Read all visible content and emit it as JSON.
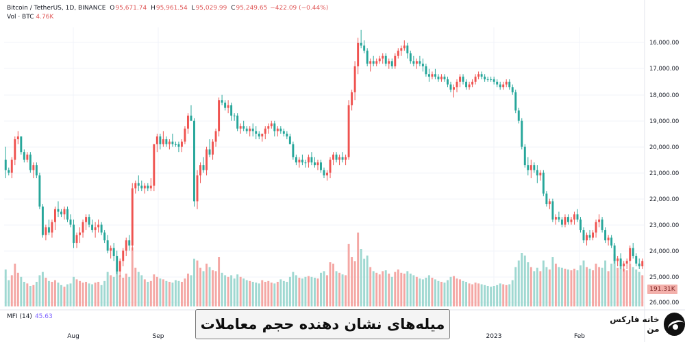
{
  "header": {
    "symbol": "Bitcoin / TetherUS, 1D, BINANCE",
    "open_label": "O",
    "open": "95,671.74",
    "high_label": "H",
    "high": "95,961.54",
    "low_label": "L",
    "low": "95,029.99",
    "close_label": "C",
    "close": "95,249.65",
    "change": "−422.09 (−0.44%)",
    "vol_label": "Vol · BTC",
    "vol_value": "4.76K"
  },
  "indicator": {
    "label": "MFI (14)",
    "value": "45.63"
  },
  "volume_badge": "191.31K",
  "banner_text": "میله‌های نشان دهنده حجم معاملات",
  "brand_text": "خانه فارکس من",
  "colors": {
    "up": "#26a69a",
    "down": "#ef5350",
    "vol_up": "#9fd8d1",
    "vol_down": "#f4a7a4",
    "grid": "#f0f3fa"
  },
  "chart_data": {
    "type": "candlestick",
    "price_axis": {
      "inverted": true,
      "ticks": [
        "16,000.00",
        "17,000.00",
        "18,000.00",
        "19,000.00",
        "20,000.00",
        "21,000.00",
        "22,000.00",
        "23,000.00",
        "24,000.00",
        "25,000.00",
        "26,000.00"
      ],
      "range": [
        15500,
        26300
      ]
    },
    "x_axis": {
      "ticks": [
        "Aug",
        "Sep",
        "2023",
        "Feb"
      ]
    },
    "volume_max": 900,
    "candles": [
      [
        20600,
        21300,
        20100,
        21000,
        450
      ],
      [
        21000,
        21200,
        20900,
        21100,
        320
      ],
      [
        21100,
        21300,
        20500,
        20600,
        380
      ],
      [
        20600,
        20800,
        19700,
        19800,
        520
      ],
      [
        19800,
        20000,
        19500,
        19700,
        410
      ],
      [
        19700,
        20400,
        19700,
        20300,
        360
      ],
      [
        20300,
        20700,
        20200,
        20600,
        300
      ],
      [
        20600,
        20700,
        20300,
        20400,
        280
      ],
      [
        20400,
        21100,
        20300,
        21000,
        250
      ],
      [
        21000,
        21300,
        20700,
        20800,
        260
      ],
      [
        20800,
        21300,
        20700,
        21200,
        300
      ],
      [
        21200,
        22500,
        21100,
        22400,
        380
      ],
      [
        22400,
        23600,
        22300,
        23500,
        420
      ],
      [
        23500,
        23700,
        23100,
        23200,
        350
      ],
      [
        23200,
        23500,
        22900,
        23400,
        310
      ],
      [
        23400,
        23600,
        22900,
        23000,
        300
      ],
      [
        23000,
        23300,
        22400,
        22500,
        320
      ],
      [
        22500,
        22800,
        22200,
        22600,
        290
      ],
      [
        22600,
        22800,
        22500,
        22700,
        260
      ],
      [
        22700,
        22900,
        22400,
        22500,
        240
      ],
      [
        22500,
        23000,
        22400,
        22900,
        270
      ],
      [
        22900,
        23200,
        22700,
        23100,
        280
      ],
      [
        23100,
        24000,
        22900,
        23800,
        360
      ],
      [
        23800,
        24000,
        23400,
        23500,
        330
      ],
      [
        23500,
        23800,
        23200,
        23400,
        310
      ],
      [
        23400,
        23600,
        22900,
        23000,
        290
      ],
      [
        23000,
        23300,
        22700,
        22800,
        300
      ],
      [
        22800,
        23200,
        22700,
        23100,
        280
      ],
      [
        23100,
        23400,
        22900,
        23300,
        270
      ],
      [
        23300,
        23600,
        23000,
        23200,
        290
      ],
      [
        23200,
        23400,
        22900,
        23100,
        300
      ],
      [
        23100,
        23500,
        23000,
        23400,
        260
      ],
      [
        23400,
        23800,
        23300,
        23700,
        310
      ],
      [
        23700,
        24200,
        23500,
        24100,
        420
      ],
      [
        24100,
        24400,
        23900,
        24000,
        380
      ],
      [
        24000,
        24500,
        23800,
        24300,
        360
      ],
      [
        24300,
        25000,
        24100,
        24900,
        430
      ],
      [
        24900,
        25100,
        24400,
        24500,
        380
      ],
      [
        24500,
        24700,
        24000,
        24100,
        350
      ],
      [
        24100,
        24300,
        23600,
        23700,
        400
      ],
      [
        23700,
        24100,
        23500,
        23900,
        360
      ],
      [
        23900,
        24100,
        21500,
        21700,
        720
      ],
      [
        21700,
        21900,
        21400,
        21500,
        470
      ],
      [
        21500,
        21800,
        21200,
        21600,
        420
      ],
      [
        21600,
        21800,
        21400,
        21700,
        380
      ],
      [
        21700,
        21900,
        21500,
        21600,
        330
      ],
      [
        21600,
        21800,
        21500,
        21700,
        300
      ],
      [
        21700,
        21800,
        21300,
        21600,
        310
      ],
      [
        21600,
        21800,
        20000,
        20000,
        390
      ],
      [
        20000,
        20300,
        19600,
        19700,
        360
      ],
      [
        19700,
        20200,
        19600,
        20000,
        340
      ],
      [
        20000,
        20100,
        19500,
        19800,
        330
      ],
      [
        19800,
        20100,
        19700,
        20000,
        310
      ],
      [
        20000,
        20200,
        19800,
        19900,
        300
      ],
      [
        19900,
        20100,
        19600,
        20000,
        290
      ],
      [
        20000,
        20100,
        19900,
        20000,
        320
      ],
      [
        20000,
        20300,
        19900,
        20100,
        310
      ],
      [
        20100,
        20300,
        19800,
        19900,
        300
      ],
      [
        19900,
        20000,
        19300,
        19400,
        340
      ],
      [
        19400,
        19600,
        18800,
        18900,
        400
      ],
      [
        18900,
        19100,
        18500,
        19100,
        380
      ],
      [
        19100,
        22400,
        19000,
        22200,
        580
      ],
      [
        22200,
        22500,
        21000,
        21200,
        560
      ],
      [
        21200,
        21500,
        20700,
        20800,
        470
      ],
      [
        20800,
        21100,
        20500,
        21000,
        430
      ],
      [
        21000,
        21200,
        20100,
        20200,
        520
      ],
      [
        20200,
        20500,
        19800,
        20400,
        480
      ],
      [
        20400,
        20600,
        19800,
        19900,
        440
      ],
      [
        19900,
        20100,
        19400,
        19500,
        430
      ],
      [
        19500,
        19700,
        18200,
        18300,
        600
      ],
      [
        18300,
        18500,
        18100,
        18400,
        410
      ],
      [
        18400,
        18700,
        18300,
        18600,
        380
      ],
      [
        18600,
        18800,
        18300,
        18500,
        360
      ],
      [
        18500,
        19100,
        18400,
        18900,
        380
      ],
      [
        18900,
        19100,
        18800,
        18900,
        340
      ],
      [
        18900,
        19500,
        18800,
        19400,
        390
      ],
      [
        19400,
        19600,
        19200,
        19300,
        360
      ],
      [
        19300,
        19500,
        19100,
        19400,
        340
      ],
      [
        19400,
        19600,
        19300,
        19500,
        320
      ],
      [
        19500,
        19700,
        19300,
        19400,
        310
      ],
      [
        19400,
        19700,
        19200,
        19500,
        300
      ],
      [
        19500,
        19800,
        19300,
        19600,
        290
      ],
      [
        19600,
        19800,
        19500,
        19700,
        280
      ],
      [
        19700,
        19900,
        19600,
        19600,
        320
      ],
      [
        19600,
        19800,
        19300,
        19400,
        300
      ],
      [
        19400,
        19600,
        19200,
        19300,
        310
      ],
      [
        19300,
        19400,
        19100,
        19200,
        290
      ],
      [
        19200,
        19700,
        19100,
        19500,
        280
      ],
      [
        19500,
        19700,
        19300,
        19400,
        300
      ],
      [
        19400,
        19600,
        19300,
        19500,
        330
      ],
      [
        19500,
        19700,
        19400,
        19600,
        310
      ],
      [
        19600,
        19800,
        19500,
        19700,
        300
      ],
      [
        19700,
        20000,
        19600,
        20000,
        360
      ],
      [
        20000,
        20600,
        19900,
        20500,
        420
      ],
      [
        20500,
        20800,
        20400,
        20700,
        380
      ],
      [
        20700,
        20900,
        20500,
        20600,
        350
      ],
      [
        20600,
        20800,
        20400,
        20700,
        340
      ],
      [
        20700,
        20900,
        20600,
        20700,
        360
      ],
      [
        20700,
        20900,
        20400,
        20500,
        370
      ],
      [
        20500,
        20800,
        20300,
        20700,
        360
      ],
      [
        20700,
        20900,
        20500,
        20800,
        350
      ],
      [
        20800,
        21000,
        20600,
        20700,
        340
      ],
      [
        20700,
        21100,
        20600,
        21000,
        410
      ],
      [
        21000,
        21300,
        20900,
        21200,
        430
      ],
      [
        21200,
        21400,
        21000,
        21100,
        380
      ],
      [
        21100,
        21300,
        20500,
        20600,
        540
      ],
      [
        20600,
        20800,
        20300,
        20400,
        520
      ],
      [
        20400,
        20700,
        20300,
        20600,
        430
      ],
      [
        20600,
        20800,
        20400,
        20500,
        410
      ],
      [
        20500,
        20700,
        20300,
        20600,
        390
      ],
      [
        20600,
        20800,
        20400,
        20500,
        380
      ],
      [
        20500,
        20600,
        18300,
        18500,
        760
      ],
      [
        18500,
        18700,
        17900,
        18000,
        600
      ],
      [
        18000,
        18300,
        16800,
        17000,
        550
      ],
      [
        17000,
        17300,
        15900,
        16100,
        900
      ],
      [
        16100,
        16300,
        15600,
        16200,
        700
      ],
      [
        16200,
        16500,
        16000,
        16400,
        580
      ],
      [
        16400,
        17000,
        16300,
        16900,
        620
      ],
      [
        16900,
        17200,
        16700,
        16800,
        480
      ],
      [
        16800,
        17000,
        16600,
        16900,
        430
      ],
      [
        16900,
        17000,
        16700,
        16800,
        410
      ],
      [
        16800,
        16900,
        16600,
        16700,
        390
      ],
      [
        16700,
        16900,
        16500,
        16600,
        430
      ],
      [
        16600,
        17000,
        16500,
        16900,
        440
      ],
      [
        16900,
        17100,
        16700,
        16800,
        400
      ],
      [
        16800,
        17100,
        16700,
        17000,
        360
      ],
      [
        17000,
        17100,
        16500,
        16600,
        420
      ],
      [
        16600,
        16700,
        16300,
        16400,
        450
      ],
      [
        16400,
        16600,
        16200,
        16300,
        410
      ],
      [
        16300,
        16400,
        16000,
        16200,
        400
      ],
      [
        16200,
        16700,
        16100,
        16500,
        430
      ],
      [
        16500,
        16900,
        16400,
        16800,
        400
      ],
      [
        16800,
        17000,
        16600,
        16900,
        380
      ],
      [
        16900,
        17100,
        16700,
        16800,
        360
      ],
      [
        16800,
        17000,
        16600,
        16900,
        340
      ],
      [
        16900,
        17200,
        16700,
        17000,
        330
      ],
      [
        17000,
        17400,
        16900,
        17300,
        350
      ],
      [
        17300,
        17600,
        17100,
        17400,
        380
      ],
      [
        17400,
        17500,
        17200,
        17300,
        350
      ],
      [
        17300,
        17500,
        17100,
        17400,
        330
      ],
      [
        17400,
        17600,
        17300,
        17500,
        310
      ],
      [
        17500,
        17600,
        17300,
        17400,
        300
      ],
      [
        17400,
        17600,
        17300,
        17500,
        290
      ],
      [
        17500,
        17800,
        17400,
        17700,
        320
      ],
      [
        17700,
        18000,
        17600,
        17900,
        360
      ],
      [
        17900,
        18200,
        17700,
        17800,
        370
      ],
      [
        17800,
        18000,
        17500,
        17600,
        340
      ],
      [
        17600,
        17800,
        17300,
        17400,
        330
      ],
      [
        17400,
        17700,
        17300,
        17600,
        310
      ],
      [
        17600,
        17900,
        17500,
        17800,
        300
      ],
      [
        17800,
        17900,
        17600,
        17700,
        280
      ],
      [
        17700,
        17800,
        17500,
        17600,
        270
      ],
      [
        17600,
        17700,
        17300,
        17400,
        290
      ],
      [
        17400,
        17500,
        17200,
        17300,
        280
      ],
      [
        17300,
        17500,
        17200,
        17400,
        270
      ],
      [
        17400,
        17600,
        17300,
        17500,
        260
      ],
      [
        17500,
        17600,
        17400,
        17500,
        250
      ],
      [
        17500,
        17600,
        17400,
        17500,
        240
      ],
      [
        17500,
        17700,
        17400,
        17600,
        250
      ],
      [
        17600,
        17800,
        17500,
        17700,
        260
      ],
      [
        17700,
        17900,
        17600,
        17800,
        280
      ],
      [
        17800,
        17900,
        17600,
        17700,
        270
      ],
      [
        17700,
        17800,
        17500,
        17600,
        260
      ],
      [
        17600,
        17900,
        17500,
        17800,
        270
      ],
      [
        17800,
        18100,
        17700,
        18000,
        320
      ],
      [
        18000,
        18800,
        17900,
        18700,
        480
      ],
      [
        18700,
        19200,
        18600,
        19100,
        560
      ],
      [
        19100,
        20200,
        19000,
        20100,
        650
      ],
      [
        20100,
        20900,
        20000,
        20800,
        620
      ],
      [
        20800,
        21200,
        20500,
        21000,
        540
      ],
      [
        21000,
        21300,
        20600,
        20800,
        480
      ],
      [
        20800,
        21100,
        20700,
        21000,
        430
      ],
      [
        21000,
        21500,
        20800,
        21200,
        470
      ],
      [
        21200,
        21400,
        21000,
        21100,
        430
      ],
      [
        21100,
        22000,
        21000,
        21900,
        560
      ],
      [
        21900,
        22400,
        21800,
        22300,
        480
      ],
      [
        22300,
        22500,
        22100,
        22200,
        450
      ],
      [
        22200,
        23000,
        22100,
        22900,
        600
      ],
      [
        22900,
        23100,
        22700,
        22800,
        520
      ],
      [
        22800,
        23000,
        22600,
        22900,
        480
      ],
      [
        22900,
        23200,
        22800,
        23100,
        470
      ],
      [
        23100,
        23200,
        22700,
        22800,
        460
      ],
      [
        22800,
        23100,
        22700,
        23000,
        450
      ],
      [
        23000,
        23100,
        22800,
        22900,
        440
      ],
      [
        22900,
        23100,
        22600,
        22700,
        460
      ],
      [
        22700,
        23000,
        22500,
        22900,
        440
      ],
      [
        22900,
        23400,
        22800,
        23300,
        500
      ],
      [
        23300,
        23800,
        23200,
        23700,
        560
      ],
      [
        23700,
        23900,
        23400,
        23500,
        480
      ],
      [
        23500,
        23700,
        23300,
        23600,
        460
      ],
      [
        23600,
        23700,
        23300,
        23400,
        440
      ],
      [
        23400,
        23600,
        22900,
        23000,
        520
      ],
      [
        23000,
        23200,
        22700,
        22900,
        480
      ],
      [
        22900,
        23400,
        22800,
        23300,
        470
      ],
      [
        23300,
        23800,
        23200,
        23700,
        560
      ],
      [
        23700,
        23900,
        23500,
        23600,
        430
      ],
      [
        23600,
        24000,
        23500,
        23900,
        520
      ],
      [
        23900,
        24600,
        23800,
        24500,
        640
      ],
      [
        24500,
        24700,
        24300,
        24400,
        470
      ],
      [
        24400,
        24800,
        24200,
        24700,
        500
      ],
      [
        24700,
        24900,
        24500,
        24600,
        460
      ],
      [
        24600,
        24800,
        24400,
        24500,
        440
      ],
      [
        24500,
        24600,
        23900,
        24000,
        520
      ],
      [
        24000,
        24400,
        23800,
        24300,
        480
      ],
      [
        24300,
        24700,
        24200,
        24600,
        450
      ],
      [
        24600,
        24800,
        24400,
        24700,
        420
      ],
      [
        24700,
        24800,
        24400,
        24500,
        380
      ]
    ]
  }
}
